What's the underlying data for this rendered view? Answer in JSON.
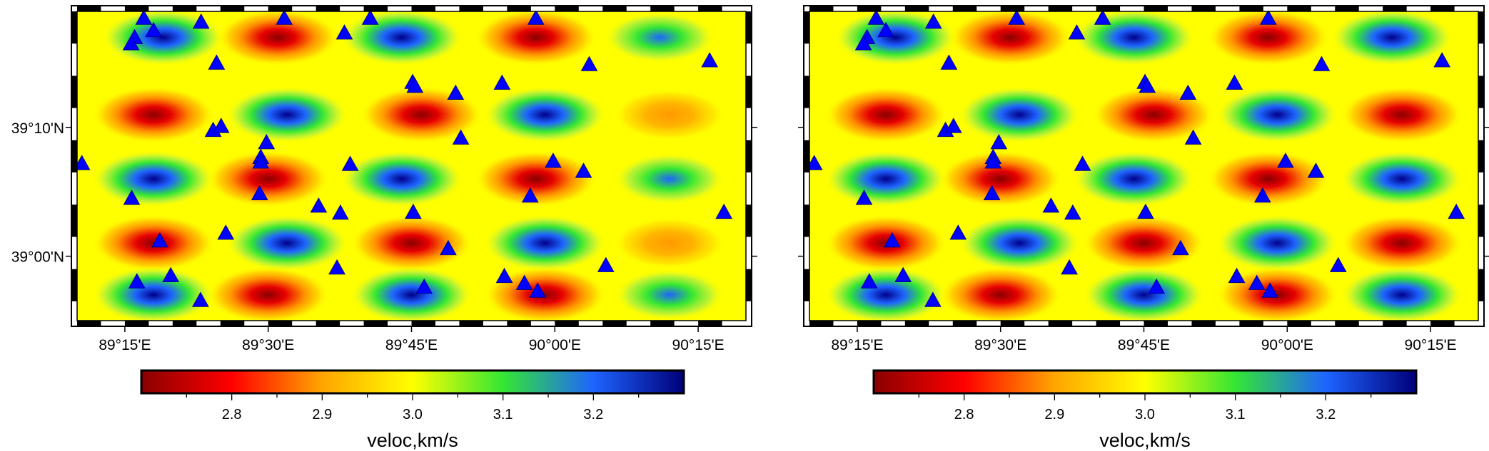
{
  "panels": [
    {
      "id": "observed",
      "x_ticks": [
        "89°15'E",
        "89°30'E",
        "89°45'E",
        "90°00'E",
        "90°15'E"
      ],
      "y_ticks": [
        "39°10'N",
        "39°00'N"
      ],
      "colorbar": {
        "ticks": [
          "2.8",
          "2.9",
          "3.0",
          "3.1",
          "3.2"
        ],
        "label": "veloc,km/s",
        "colors": [
          "#8a0000",
          "#ff0000",
          "#ffa500",
          "#ffff00",
          "#33e633",
          "#1e64ff",
          "#00007a"
        ]
      }
    },
    {
      "id": "checkerboard",
      "x_ticks": [
        "89°15'E",
        "89°30'E",
        "89°45'E",
        "90°00'E",
        "90°15'E"
      ],
      "y_ticks": [],
      "colorbar": {
        "ticks": [
          "2.8",
          "2.9",
          "3.0",
          "3.1",
          "3.2"
        ],
        "label": "veloc,km/s",
        "colors": [
          "#8a0000",
          "#ff0000",
          "#ffa500",
          "#ffff00",
          "#33e633",
          "#1e64ff",
          "#00007a"
        ]
      }
    }
  ],
  "map_data": {
    "lon_range": [
      89.1667,
      90.3333
    ],
    "lat_range": [
      38.9167,
      39.3167
    ],
    "background_velocity": 3.0,
    "velocity_range": [
      2.7,
      3.3
    ],
    "anomaly_cells": [
      {
        "lon": 89.317,
        "lat": 39.283,
        "sign": 1
      },
      {
        "lon": 89.517,
        "lat": 39.283,
        "sign": -1
      },
      {
        "lon": 89.733,
        "lat": 39.283,
        "sign": 1
      },
      {
        "lon": 89.967,
        "lat": 39.283,
        "sign": -1
      },
      {
        "lon": 90.183,
        "lat": 39.283,
        "sign": 1
      },
      {
        "lon": 89.3,
        "lat": 39.183,
        "sign": -1
      },
      {
        "lon": 89.533,
        "lat": 39.183,
        "sign": 1
      },
      {
        "lon": 89.767,
        "lat": 39.183,
        "sign": -1
      },
      {
        "lon": 89.983,
        "lat": 39.183,
        "sign": 1
      },
      {
        "lon": 90.2,
        "lat": 39.183,
        "sign": -1
      },
      {
        "lon": 89.3,
        "lat": 39.1,
        "sign": 1
      },
      {
        "lon": 89.5,
        "lat": 39.1,
        "sign": -1
      },
      {
        "lon": 89.733,
        "lat": 39.1,
        "sign": 1
      },
      {
        "lon": 89.967,
        "lat": 39.1,
        "sign": -1
      },
      {
        "lon": 90.2,
        "lat": 39.1,
        "sign": 1
      },
      {
        "lon": 89.3,
        "lat": 39.017,
        "sign": -1
      },
      {
        "lon": 89.533,
        "lat": 39.017,
        "sign": 1
      },
      {
        "lon": 89.75,
        "lat": 39.017,
        "sign": -1
      },
      {
        "lon": 89.983,
        "lat": 39.017,
        "sign": 1
      },
      {
        "lon": 90.2,
        "lat": 39.017,
        "sign": -1
      },
      {
        "lon": 89.3,
        "lat": 38.95,
        "sign": 1
      },
      {
        "lon": 89.5,
        "lat": 38.95,
        "sign": -1
      },
      {
        "lon": 89.75,
        "lat": 38.95,
        "sign": 1
      },
      {
        "lon": 89.983,
        "lat": 38.95,
        "sign": -1
      },
      {
        "lon": 90.2,
        "lat": 38.95,
        "sign": 1
      }
    ],
    "stations": [
      {
        "lon": 89.283,
        "lat": 39.308
      },
      {
        "lon": 89.3,
        "lat": 39.292
      },
      {
        "lon": 89.267,
        "lat": 39.283
      },
      {
        "lon": 89.261,
        "lat": 39.275
      },
      {
        "lon": 89.383,
        "lat": 39.303
      },
      {
        "lon": 89.528,
        "lat": 39.308
      },
      {
        "lon": 89.633,
        "lat": 39.289
      },
      {
        "lon": 89.678,
        "lat": 39.308
      },
      {
        "lon": 89.967,
        "lat": 39.308
      },
      {
        "lon": 89.41,
        "lat": 39.25
      },
      {
        "lon": 89.752,
        "lat": 39.225
      },
      {
        "lon": 89.756,
        "lat": 39.22
      },
      {
        "lon": 89.827,
        "lat": 39.211
      },
      {
        "lon": 89.908,
        "lat": 39.224
      },
      {
        "lon": 90.06,
        "lat": 39.248
      },
      {
        "lon": 90.27,
        "lat": 39.253
      },
      {
        "lon": 89.404,
        "lat": 39.163
      },
      {
        "lon": 89.418,
        "lat": 39.168
      },
      {
        "lon": 89.497,
        "lat": 39.147
      },
      {
        "lon": 89.836,
        "lat": 39.153
      },
      {
        "lon": 89.487,
        "lat": 39.128
      },
      {
        "lon": 89.487,
        "lat": 39.122
      },
      {
        "lon": 89.643,
        "lat": 39.119
      },
      {
        "lon": 89.175,
        "lat": 39.12
      },
      {
        "lon": 89.997,
        "lat": 39.123
      },
      {
        "lon": 90.05,
        "lat": 39.11
      },
      {
        "lon": 89.485,
        "lat": 39.081
      },
      {
        "lon": 89.262,
        "lat": 39.075
      },
      {
        "lon": 89.588,
        "lat": 39.065
      },
      {
        "lon": 89.626,
        "lat": 39.056
      },
      {
        "lon": 89.957,
        "lat": 39.078
      },
      {
        "lon": 89.753,
        "lat": 39.057
      },
      {
        "lon": 90.295,
        "lat": 39.057
      },
      {
        "lon": 89.426,
        "lat": 39.03
      },
      {
        "lon": 89.311,
        "lat": 39.02
      },
      {
        "lon": 89.814,
        "lat": 39.01
      },
      {
        "lon": 90.089,
        "lat": 38.988
      },
      {
        "lon": 89.62,
        "lat": 38.985
      },
      {
        "lon": 89.271,
        "lat": 38.967
      },
      {
        "lon": 89.33,
        "lat": 38.975
      },
      {
        "lon": 89.382,
        "lat": 38.943
      },
      {
        "lon": 89.772,
        "lat": 38.96
      },
      {
        "lon": 89.912,
        "lat": 38.974
      },
      {
        "lon": 89.947,
        "lat": 38.965
      },
      {
        "lon": 89.97,
        "lat": 38.955
      }
    ]
  }
}
